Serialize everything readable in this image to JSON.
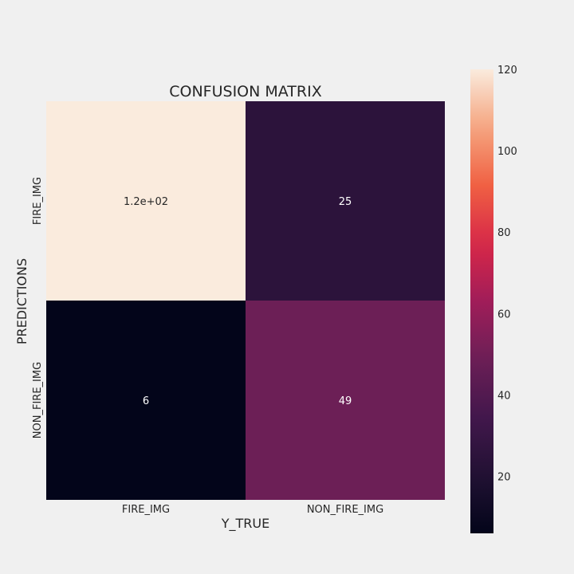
{
  "chart_data": {
    "type": "heatmap",
    "title": "CONFUSION MATRIX",
    "xlabel": "Y_TRUE",
    "ylabel": "PREDICTIONS",
    "x_categories": [
      "FIRE_IMG",
      "NON_FIRE_IMG"
    ],
    "y_categories": [
      "FIRE_IMG",
      "NON_FIRE_IMG"
    ],
    "values": [
      [
        120,
        25
      ],
      [
        6,
        49
      ]
    ],
    "annotations": [
      [
        "1.2e+02",
        "25"
      ],
      [
        "6",
        "49"
      ]
    ],
    "colormap": "rocket",
    "colorbar": {
      "range": [
        6,
        120
      ],
      "ticks": [
        20,
        40,
        60,
        80,
        100,
        120
      ]
    }
  }
}
